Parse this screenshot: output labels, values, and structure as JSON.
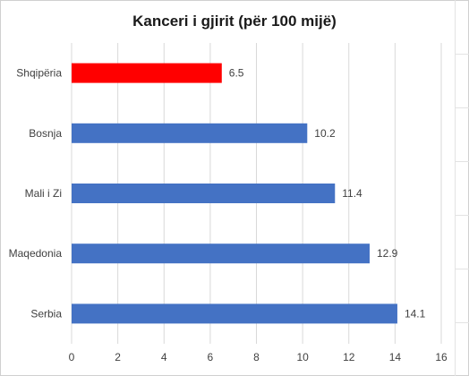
{
  "chart_data": {
    "type": "bar",
    "orientation": "horizontal",
    "title": "Kanceri i gjirit (për 100 mijë)",
    "categories": [
      "Shqipëria",
      "Bosnja",
      "Mali i Zi",
      "Maqedonia",
      "Serbia"
    ],
    "values": [
      6.5,
      10.2,
      11.4,
      12.9,
      14.1
    ],
    "data_labels": [
      "6.5",
      "10.2",
      "11.4",
      "12.9",
      "14.1"
    ],
    "xlim": [
      0,
      16
    ],
    "x_ticks": [
      0,
      2,
      4,
      6,
      8,
      10,
      12,
      14,
      16
    ],
    "grid": "vertical",
    "colors": {
      "default": "#4472C4",
      "highlight": "#FF0000",
      "grid": "#d9d9d9",
      "text": "#404040"
    },
    "highlight_category": "Shqipëria",
    "xlabel": "",
    "ylabel": ""
  }
}
